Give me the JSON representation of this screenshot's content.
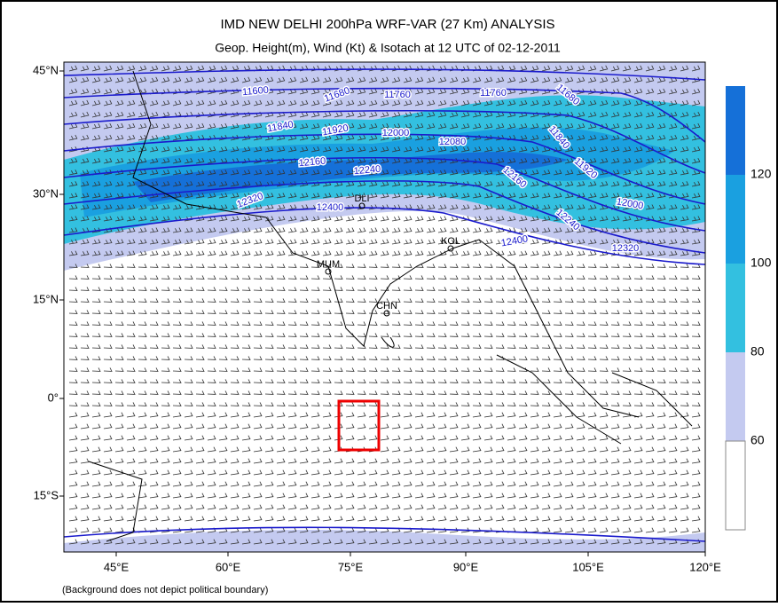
{
  "header": {
    "title": "IMD NEW DELHI 200hPa WRF-VAR (27 Km) ANALYSIS",
    "subtitle": "Geop. Height(m), Wind (Kt) & Isotach  at 12 UTC of 02-12-2011"
  },
  "map": {
    "lat_labels": [
      "45°N",
      "30°N",
      "15°N",
      "0°",
      "15°S"
    ],
    "lon_labels": [
      "45°E",
      "60°E",
      "75°E",
      "90°E",
      "105°E",
      "120°E"
    ],
    "cities": [
      "DLI",
      "MUM",
      "KOL",
      "CHN"
    ],
    "contour_labels": [
      "11600",
      "11680",
      "11760",
      "11760",
      "11680",
      "11840",
      "11920",
      "12000",
      "12080",
      "11840",
      "11920",
      "12160",
      "12240",
      "12160",
      "12320",
      "12400",
      "12240",
      "12000",
      "12320",
      "12400"
    ]
  },
  "colorbar": {
    "labels": [
      "120",
      "100",
      "80",
      "60"
    ]
  },
  "footer": {
    "note": "(Background does not depict political boundary)"
  }
}
